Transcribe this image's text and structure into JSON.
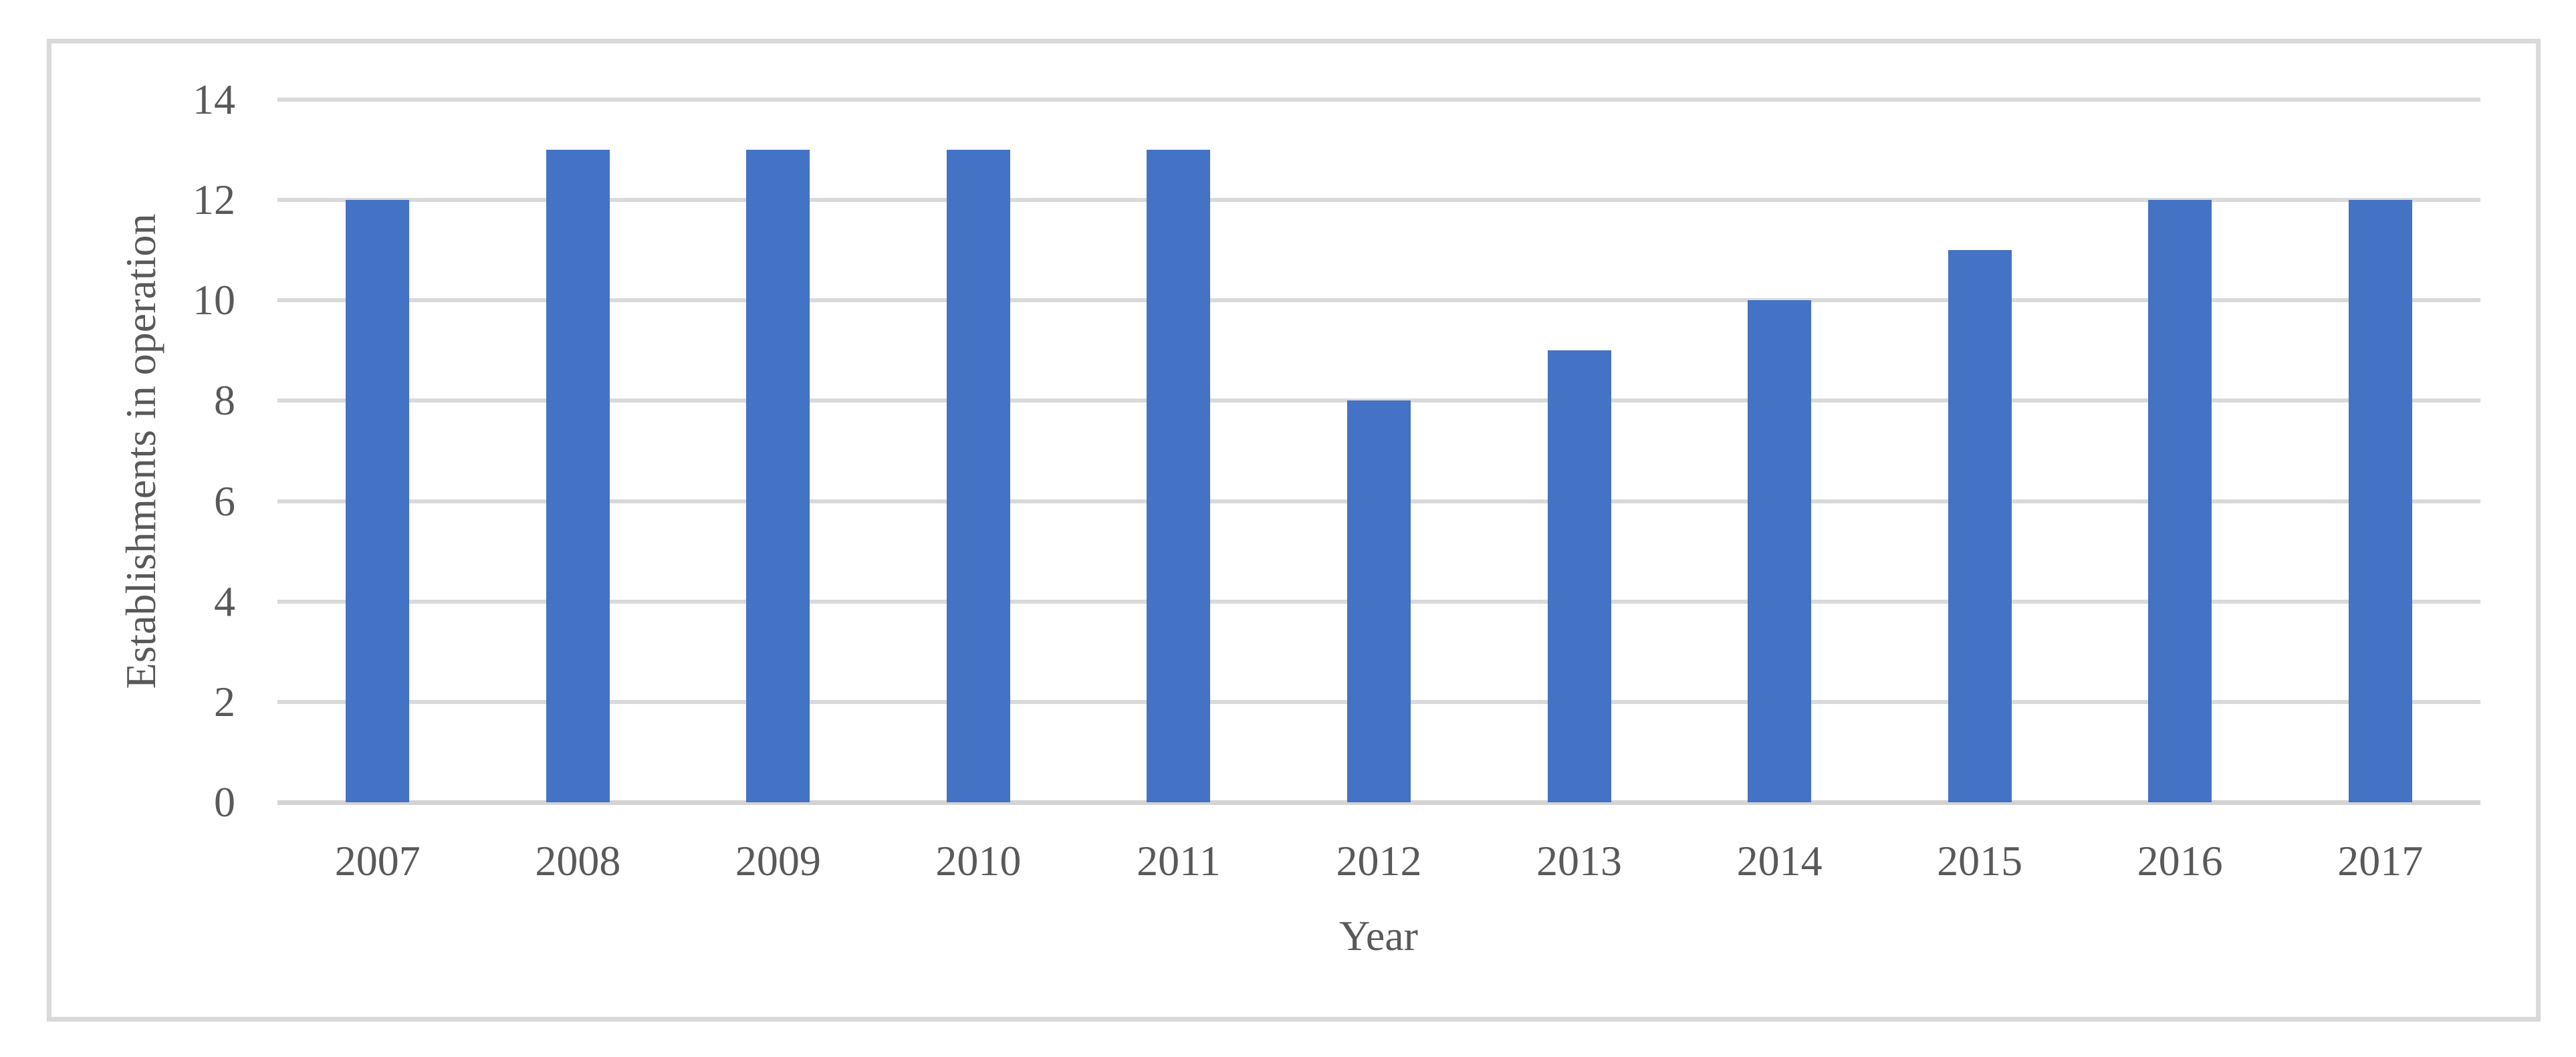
{
  "chart_data": {
    "type": "bar",
    "title": "",
    "categories": [
      "2007",
      "2008",
      "2009",
      "2010",
      "2011",
      "2012",
      "2013",
      "2014",
      "2015",
      "2016",
      "2017"
    ],
    "values": [
      12,
      13,
      13,
      13,
      13,
      8,
      9,
      10,
      11,
      12,
      12
    ],
    "xlabel": "Year",
    "ylabel": "Establishments in operation",
    "ylim": [
      0,
      14
    ],
    "yticks": [
      0,
      2,
      4,
      6,
      8,
      10,
      12,
      14
    ],
    "grid": true,
    "legend": "none",
    "bar_color": "#4472C4",
    "gridline_color": "#D9D9D9",
    "axis_line_color": "#D3D3D3",
    "text_color": "#595959",
    "frame_border_color": "#D9D9D9",
    "background_color": "#FFFFFF"
  }
}
